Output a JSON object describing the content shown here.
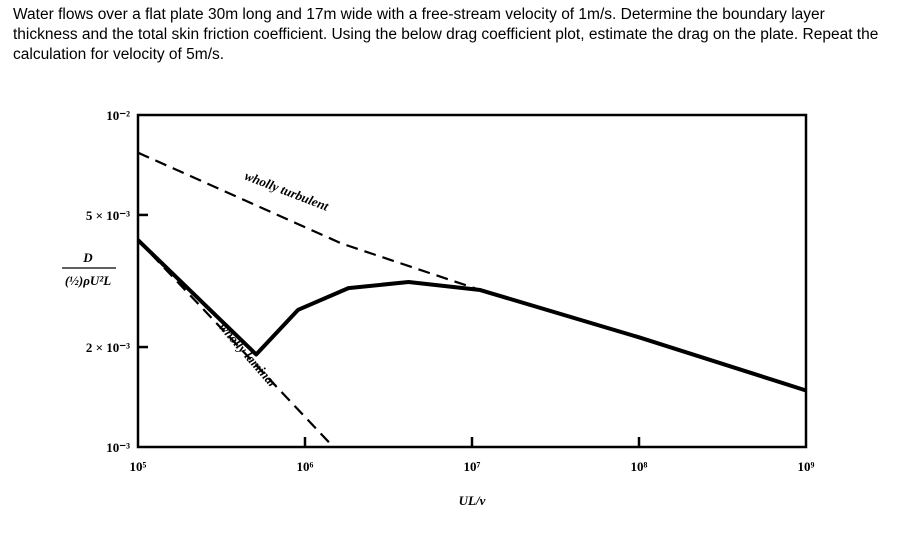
{
  "problem_text": "Water flows over a flat plate 30m long and 17m wide with a free-stream velocity of 1m/s. Determine the boundary layer thickness and the total skin friction coefficient. Using the below drag coefficient plot, estimate the drag on the plate. Repeat the calculation for velocity of 5m/s.",
  "chart_data": {
    "type": "line",
    "xscale": "log",
    "yscale": "log",
    "xlim": [
      100000,
      1000000000
    ],
    "ylim": [
      0.001,
      0.01
    ],
    "xlabel": "UL/ν",
    "ylabel_num": "D",
    "ylabel_den": "(½)ρU²L",
    "x_ticks": [
      {
        "value": 100000,
        "label": "10⁵"
      },
      {
        "value": 1000000,
        "label": "10⁶"
      },
      {
        "value": 10000000,
        "label": "10⁷"
      },
      {
        "value": 100000000,
        "label": "10⁸"
      },
      {
        "value": 1000000000,
        "label": "10⁹"
      }
    ],
    "y_ticks": [
      {
        "value": 0.01,
        "label": "10⁻²"
      },
      {
        "value": 0.005,
        "label": "5 × 10⁻³"
      },
      {
        "value": 0.002,
        "label": "2 × 10⁻³"
      },
      {
        "value": 0.001,
        "label": "10⁻³"
      }
    ],
    "grid": false,
    "series": [
      {
        "name": "wholly turbulent",
        "style": "dashed",
        "x": [
          100000,
          1660000,
          11200000,
          100000000,
          1000000000
        ],
        "y": [
          0.0077,
          0.0041,
          0.00297,
          0.00214,
          0.00148
        ]
      },
      {
        "name": "wholly laminar",
        "style": "dashed",
        "x": [
          100000,
          1480000
        ],
        "y": [
          0.0042,
          0.001
        ]
      },
      {
        "name": "",
        "style": "solid",
        "x": [
          100000,
          510000,
          910000,
          1820000,
          4170000,
          11200000,
          100000000,
          1000000000
        ],
        "y": [
          0.0042,
          0.0019,
          0.00259,
          0.00301,
          0.00314,
          0.00297,
          0.00214,
          0.00148
        ]
      }
    ]
  }
}
